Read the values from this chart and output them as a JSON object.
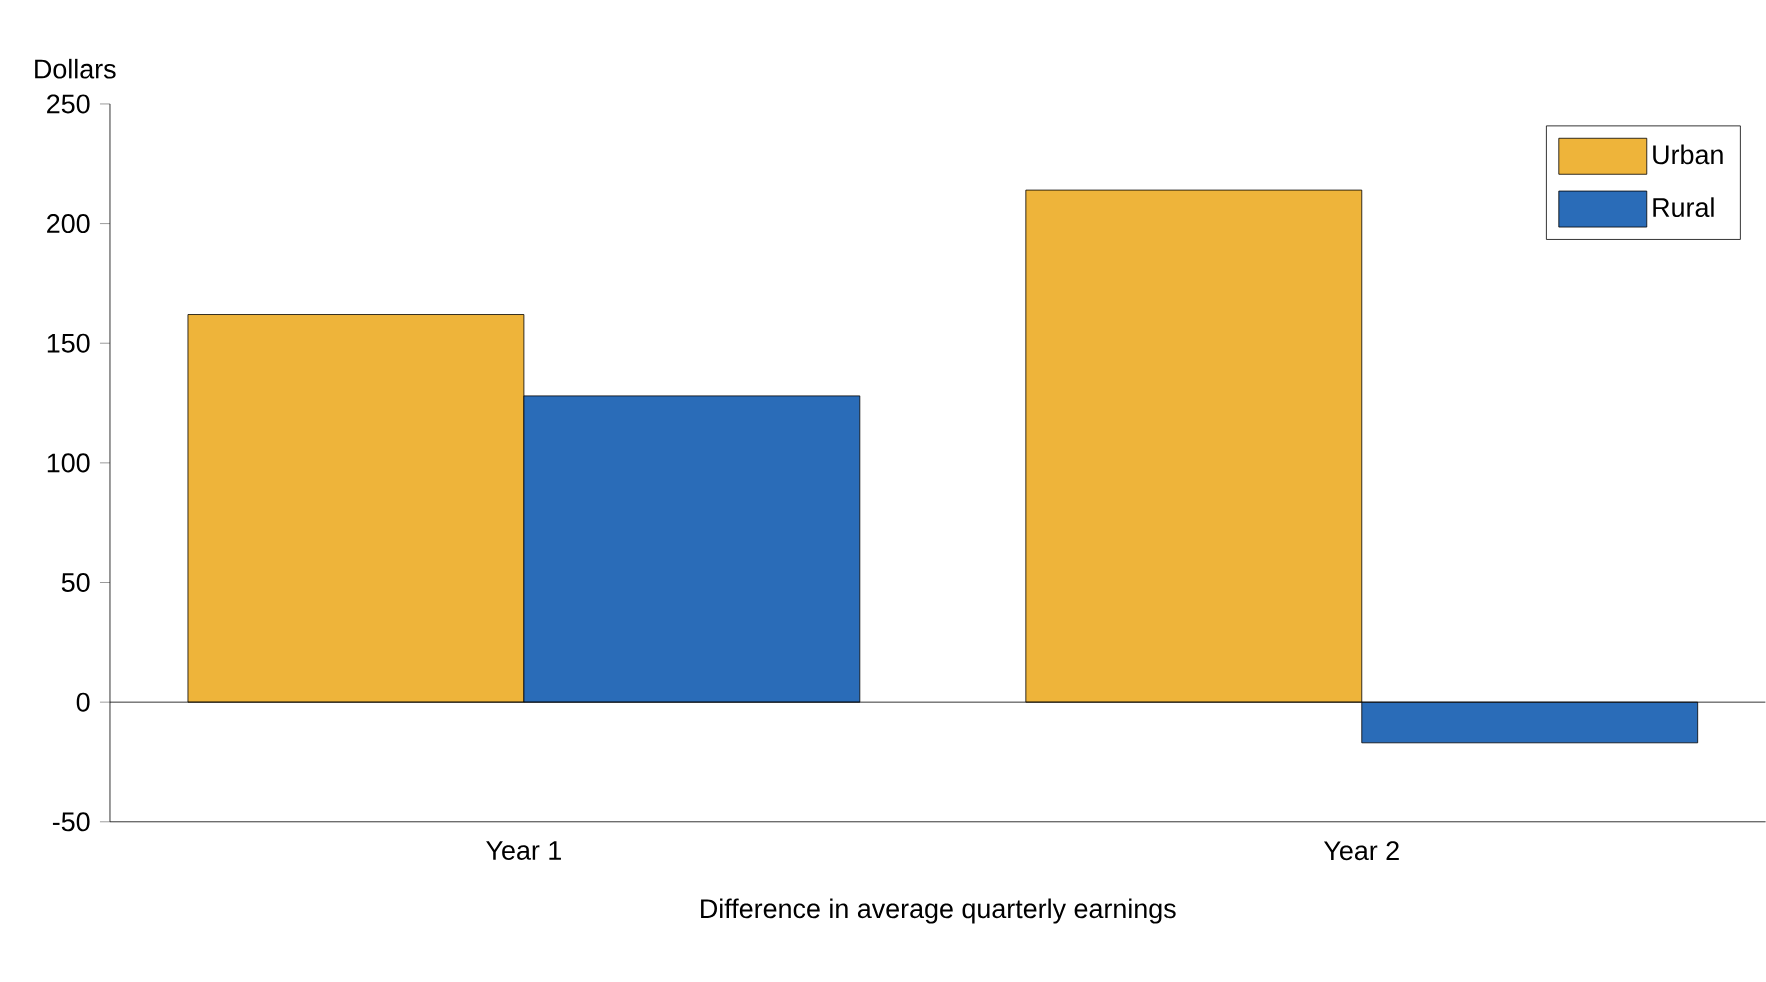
{
  "chart_data": {
    "type": "bar",
    "ylabel": "Dollars",
    "xlabel": "Difference in average quarterly earnings",
    "categories": [
      "Year 1",
      "Year 2"
    ],
    "series": [
      {
        "name": "Urban",
        "color": "#eeb43a",
        "values": [
          162,
          214
        ]
      },
      {
        "name": "Rural",
        "color": "#2a6cb8",
        "values": [
          128,
          -17
        ]
      }
    ],
    "ref_lines": [
      {
        "axis": "y",
        "value": 0,
        "color": "#000000"
      }
    ],
    "ylim": [
      -50,
      250
    ],
    "yticks": [
      -50,
      0,
      50,
      100,
      150,
      200,
      250
    ],
    "grid": false,
    "legend": "top right"
  }
}
